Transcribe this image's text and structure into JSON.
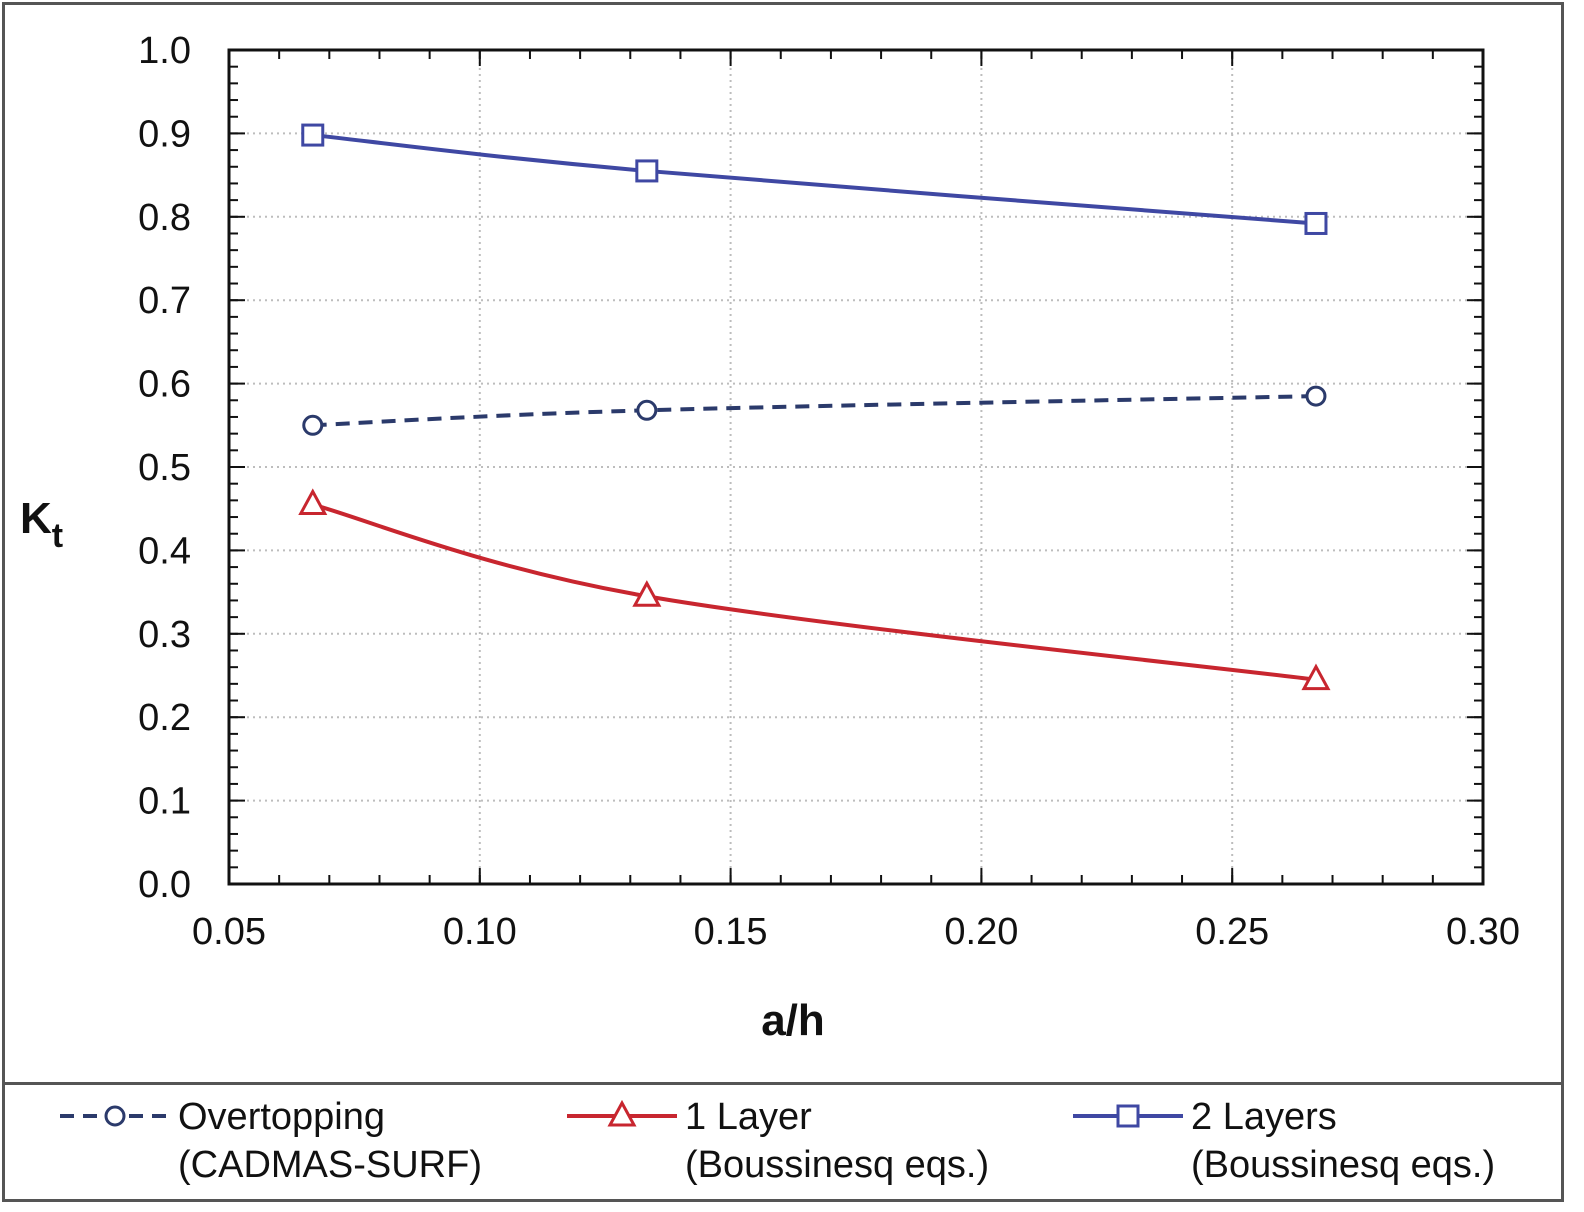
{
  "chart_data": {
    "type": "line",
    "xlabel": "a/h",
    "ylabel": "K",
    "ylabel_subscript": "t",
    "xlim": [
      0.05,
      0.3
    ],
    "ylim": [
      0.0,
      1.0
    ],
    "x_ticks": [
      "0.05",
      "0.10",
      "0.15",
      "0.20",
      "0.25",
      "0.30"
    ],
    "y_ticks": [
      "0.0",
      "0.1",
      "0.2",
      "0.3",
      "0.4",
      "0.5",
      "0.6",
      "0.7",
      "0.8",
      "0.9",
      "1.0"
    ],
    "grid": true,
    "legend_position": "bottom",
    "series": [
      {
        "name": "Overtopping",
        "name_line2": "(CADMAS-SURF)",
        "color": "#2b3a6b",
        "line_style": "dashed",
        "marker": "circle",
        "x": [
          0.0667,
          0.1333,
          0.2667
        ],
        "y": [
          0.55,
          0.568,
          0.585
        ]
      },
      {
        "name": "1 Layer",
        "name_line2": "(Boussinesq eqs.)",
        "color": "#c8262f",
        "line_style": "solid",
        "marker": "triangle",
        "x": [
          0.0667,
          0.1333,
          0.2667
        ],
        "y": [
          0.455,
          0.345,
          0.245
        ]
      },
      {
        "name": "2 Layers",
        "name_line2": "(Boussinesq eqs.)",
        "color": "#3f48a3",
        "line_style": "solid",
        "marker": "square",
        "x": [
          0.0667,
          0.1333,
          0.2667
        ],
        "y": [
          0.898,
          0.855,
          0.792
        ]
      }
    ]
  }
}
